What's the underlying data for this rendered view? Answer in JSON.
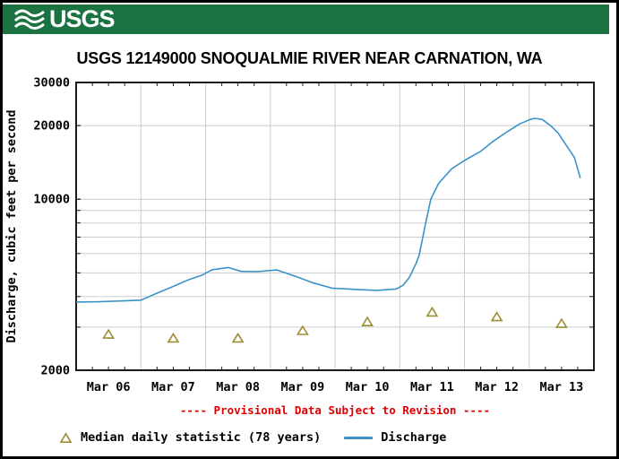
{
  "header": {
    "logo_text": "USGS",
    "bar_color": "#1b7342"
  },
  "chart_data": {
    "type": "line",
    "title": "USGS 12149000 SNOQUALMIE RIVER NEAR CARNATION, WA",
    "ylabel": "Discharge, cubic feet per second",
    "y_scale": "log",
    "ylim": [
      2000,
      30000
    ],
    "x_range_days": 8,
    "grid": true,
    "grid_color": "#cdcdcd",
    "frame_color": "#1a1a1a",
    "y_tick_values": [
      30000,
      20000,
      10000,
      2000
    ],
    "y_tick_labels": [
      "30000",
      "20000",
      "10000",
      "2000"
    ],
    "y_gridline_values": [
      3000,
      4000,
      5000,
      6000,
      7000,
      8000,
      9000,
      10000,
      20000
    ],
    "x_tick_labels": [
      "Mar 06",
      "Mar 07",
      "Mar 08",
      "Mar 09",
      "Mar 10",
      "Mar 11",
      "Mar 12",
      "Mar 13"
    ],
    "series": [
      {
        "name": "Discharge",
        "type": "line",
        "color": "#3a93c8",
        "points_t_days_vs_cfs": [
          [
            0.0,
            3800
          ],
          [
            0.35,
            3810
          ],
          [
            0.7,
            3840
          ],
          [
            1.0,
            3870
          ],
          [
            1.25,
            4130
          ],
          [
            1.5,
            4400
          ],
          [
            1.75,
            4700
          ],
          [
            1.95,
            4900
          ],
          [
            2.1,
            5150
          ],
          [
            2.35,
            5260
          ],
          [
            2.55,
            5070
          ],
          [
            2.8,
            5060
          ],
          [
            3.1,
            5140
          ],
          [
            3.4,
            4830
          ],
          [
            3.65,
            4560
          ],
          [
            3.95,
            4330
          ],
          [
            4.3,
            4280
          ],
          [
            4.65,
            4240
          ],
          [
            4.95,
            4300
          ],
          [
            5.05,
            4450
          ],
          [
            5.15,
            4800
          ],
          [
            5.25,
            5450
          ],
          [
            5.3,
            5900
          ],
          [
            5.4,
            8000
          ],
          [
            5.48,
            10000
          ],
          [
            5.6,
            11600
          ],
          [
            5.8,
            13300
          ],
          [
            6.0,
            14400
          ],
          [
            6.25,
            15700
          ],
          [
            6.45,
            17300
          ],
          [
            6.65,
            18800
          ],
          [
            6.85,
            20300
          ],
          [
            7.0,
            21100
          ],
          [
            7.08,
            21400
          ],
          [
            7.2,
            21200
          ],
          [
            7.33,
            20000
          ],
          [
            7.45,
            18600
          ],
          [
            7.58,
            16500
          ],
          [
            7.7,
            14800
          ],
          [
            7.79,
            12200
          ]
        ]
      },
      {
        "name": "Median daily statistic (78 years)",
        "type": "triangle-markers",
        "color": "#9d8d33",
        "points_t_days_vs_cfs": [
          [
            0.5,
            2800
          ],
          [
            1.5,
            2700
          ],
          [
            2.5,
            2700
          ],
          [
            3.5,
            2900
          ],
          [
            4.5,
            3150
          ],
          [
            5.5,
            3450
          ],
          [
            6.5,
            3300
          ],
          [
            7.5,
            3100
          ]
        ]
      }
    ],
    "legend_position": "bottom"
  },
  "provisional_note": "---- Provisional Data Subject to Revision ----",
  "provisional_color": "#e00000",
  "legend": {
    "median_label": "Median daily statistic (78 years)",
    "discharge_label": "Discharge"
  }
}
